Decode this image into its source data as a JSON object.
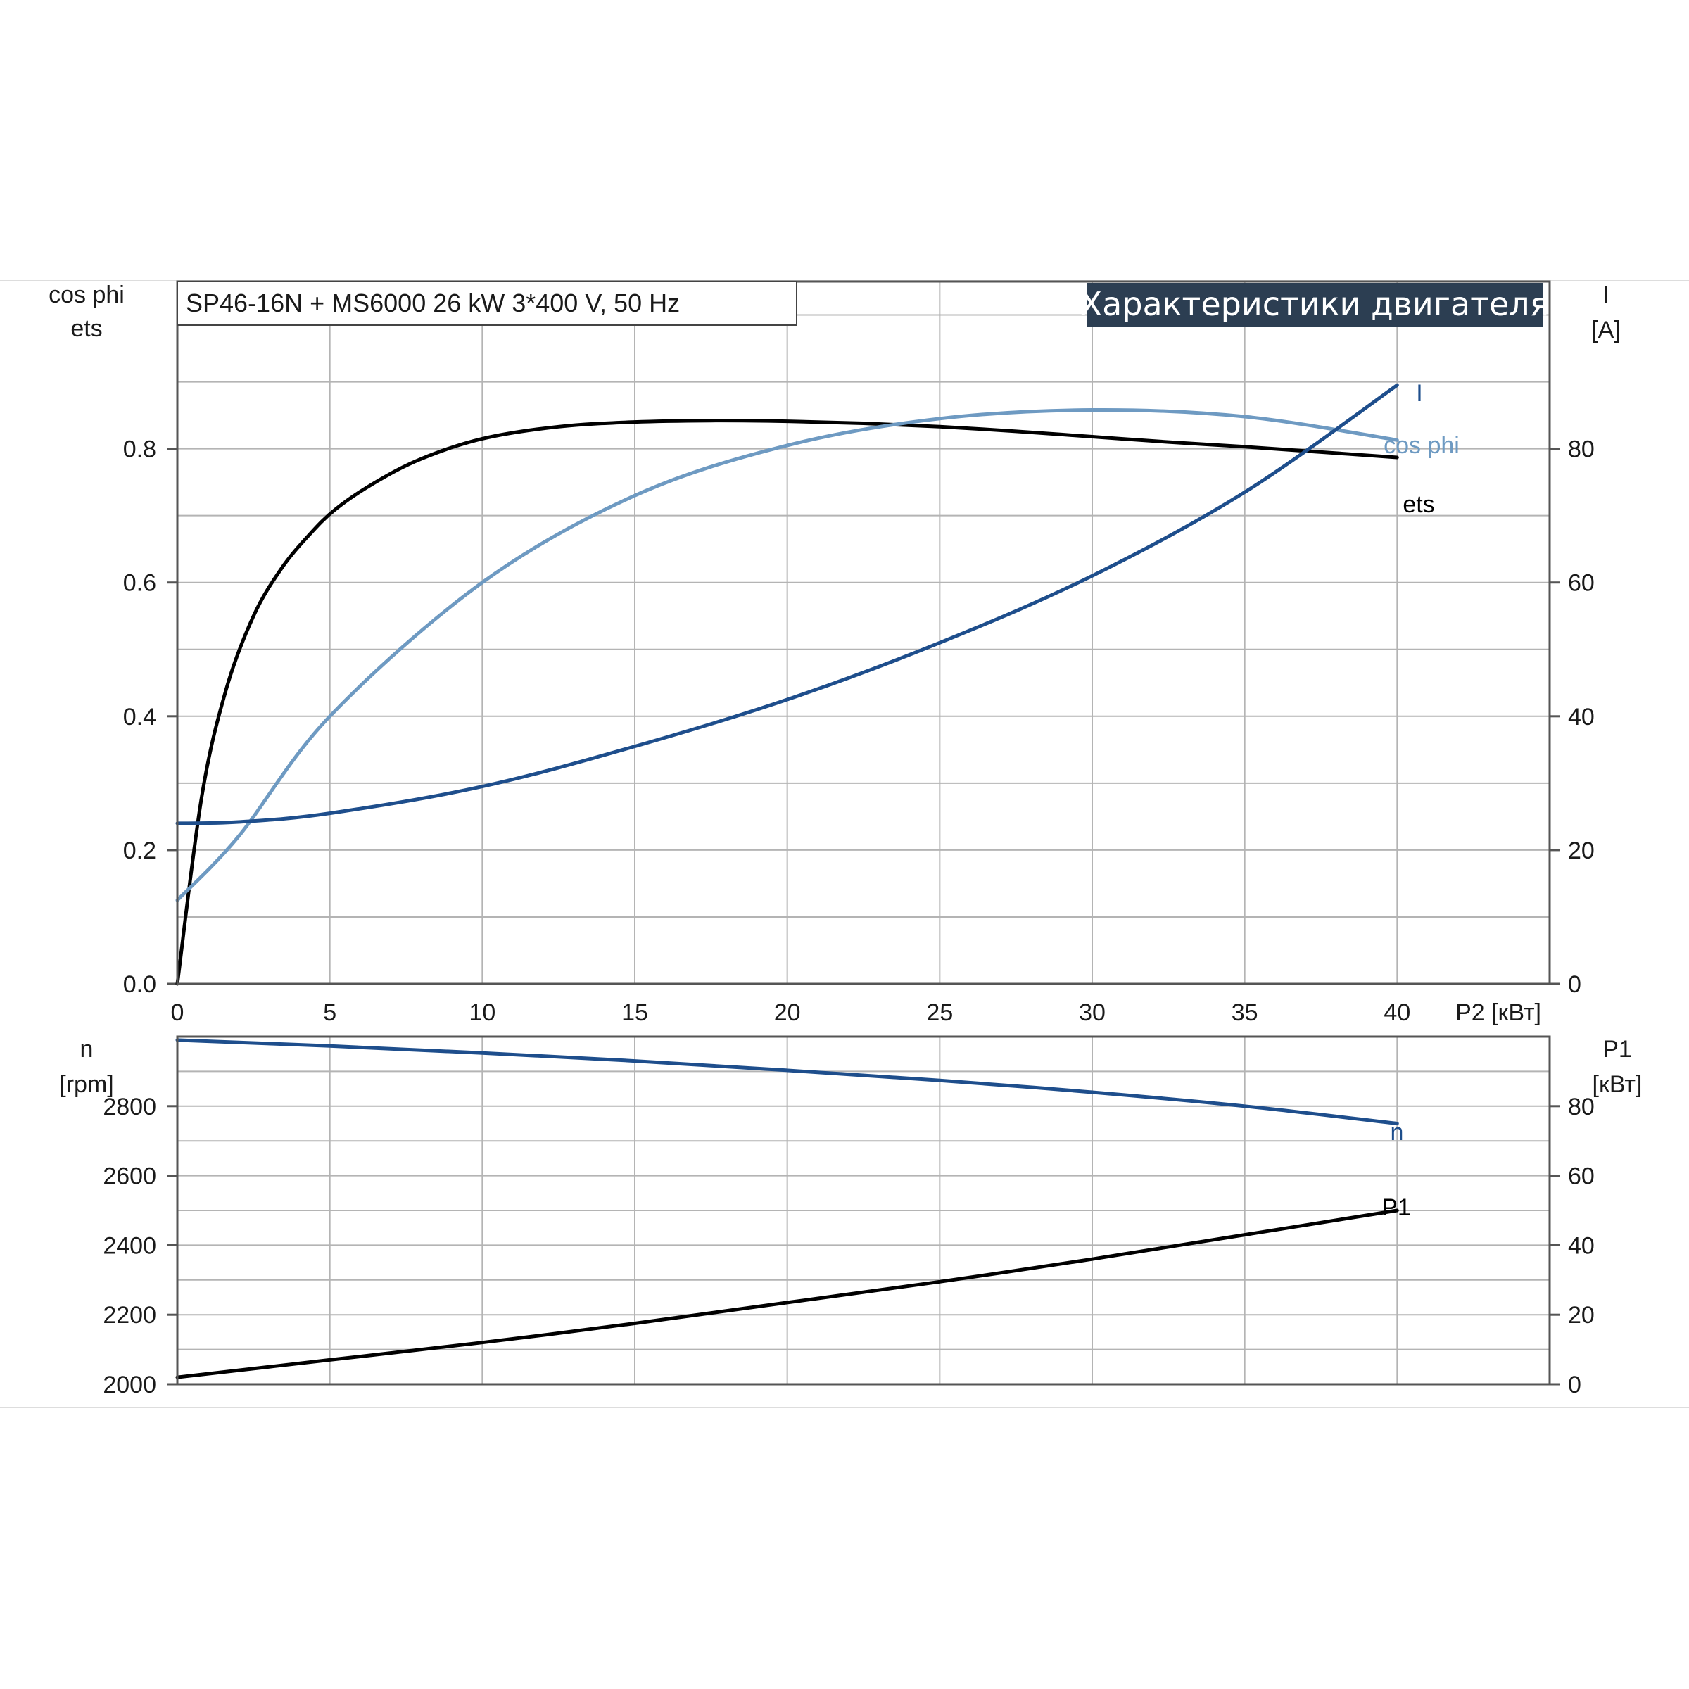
{
  "chart_data": [
    {
      "type": "line",
      "title": "Характеристики двигателя",
      "subtitle": "SP46-16N + MS6000   26 kW   3*400 V, 50 Hz",
      "xlabel": "P2 [кВт]",
      "xlim": [
        0,
        45
      ],
      "xticks": [
        "0",
        "5",
        "10",
        "15",
        "20",
        "25",
        "30",
        "35",
        "40"
      ],
      "ylabel_left": [
        "cos phi",
        "ets"
      ],
      "ylim_left": [
        0,
        1.05
      ],
      "yticks_left": [
        "0.0",
        "0.2",
        "0.4",
        "0.6",
        "0.8"
      ],
      "ylabel_right": [
        "I",
        "[A]"
      ],
      "ylim_right": [
        0,
        105
      ],
      "yticks_right": [
        "0",
        "20",
        "40",
        "60",
        "80"
      ],
      "grid": true,
      "series": [
        {
          "name": "ets",
          "axis": "left",
          "color": "#000000",
          "x": [
            0,
            0.8,
            1.6,
            2.5,
            3.4,
            4.3,
            5.2,
            6.5,
            8,
            10,
            12.5,
            15,
            17.5,
            20,
            22.5,
            25,
            27.5,
            30,
            32.5,
            35,
            37.5,
            40
          ],
          "y": [
            0.0,
            0.28,
            0.44,
            0.55,
            0.62,
            0.67,
            0.71,
            0.75,
            0.785,
            0.815,
            0.833,
            0.84,
            0.842,
            0.841,
            0.838,
            0.833,
            0.826,
            0.818,
            0.81,
            0.803,
            0.795,
            0.787
          ]
        },
        {
          "name": "cos phi",
          "axis": "left",
          "color": "#6e9ac2",
          "x": [
            0,
            2,
            5,
            10,
            15,
            20,
            25,
            30,
            35,
            40
          ],
          "y": [
            0.125,
            0.22,
            0.4,
            0.6,
            0.73,
            0.805,
            0.845,
            0.858,
            0.848,
            0.813
          ]
        },
        {
          "name": "I",
          "axis": "right",
          "color": "#1e4e8c",
          "x": [
            0,
            2,
            5,
            10,
            15,
            20,
            25,
            30,
            35,
            40
          ],
          "y": [
            24,
            24.2,
            25.5,
            29.5,
            35.5,
            42.5,
            51,
            61,
            73.5,
            89.5
          ]
        }
      ]
    },
    {
      "type": "line",
      "xlim": [
        0,
        45
      ],
      "ylabel_left": [
        "n",
        "[rpm]"
      ],
      "ylim_left": [
        2000,
        3000
      ],
      "yticks_left": [
        "2000",
        "2200",
        "2400",
        "2600",
        "2800"
      ],
      "ylabel_right": [
        "P1",
        "[кВт]"
      ],
      "ylim_right": [
        0,
        100
      ],
      "yticks_right": [
        "0",
        "20",
        "40",
        "60",
        "80"
      ],
      "grid": true,
      "series": [
        {
          "name": "n",
          "axis": "left",
          "color": "#1e4e8c",
          "x": [
            0,
            5,
            10,
            15,
            20,
            25,
            30,
            35,
            40
          ],
          "y": [
            2990,
            2973,
            2953,
            2930,
            2903,
            2874,
            2840,
            2800,
            2750
          ]
        },
        {
          "name": "P1",
          "axis": "right",
          "color": "#000000",
          "x": [
            0,
            5,
            10,
            15,
            20,
            25,
            30,
            35,
            40
          ],
          "y": [
            2,
            7,
            12,
            17.5,
            23.5,
            29.5,
            36,
            43,
            50
          ]
        }
      ]
    }
  ]
}
